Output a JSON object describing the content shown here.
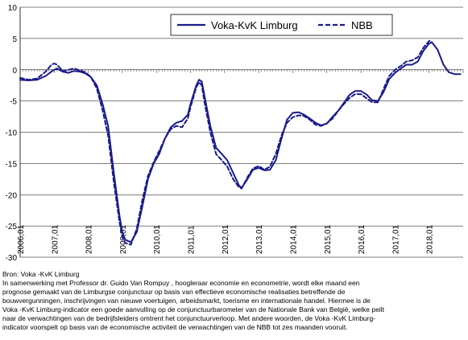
{
  "chart_data": {
    "type": "line",
    "ylim": [
      -30,
      10
    ],
    "yticks": [
      10,
      5,
      0,
      -5,
      -10,
      -15,
      -20,
      -25,
      -30
    ],
    "xticks": [
      "2006,01",
      "2007,01",
      "2008,01",
      "2009,01",
      "2010,01",
      "2011,01",
      "2012,01",
      "2013,01",
      "2014,01",
      "2015,01",
      "2016,01",
      "2017,01",
      "2018,01"
    ],
    "xstart": 2006.0,
    "xend": 2019.0,
    "grid": true,
    "legend_position": "top",
    "series": [
      {
        "name": "Voka-KvK Limburg",
        "style": "solid",
        "color": "#1a1a8a",
        "points": [
          [
            2006.0,
            -1.6
          ],
          [
            2006.25,
            -1.7
          ],
          [
            2006.5,
            -1.6
          ],
          [
            2006.75,
            -1.0
          ],
          [
            2006.92,
            -0.3
          ],
          [
            2007.0,
            0.0
          ],
          [
            2007.08,
            0.2
          ],
          [
            2007.25,
            -0.3
          ],
          [
            2007.42,
            -0.5
          ],
          [
            2007.58,
            -0.2
          ],
          [
            2007.75,
            -0.3
          ],
          [
            2007.92,
            -0.6
          ],
          [
            2008.08,
            -1.2
          ],
          [
            2008.25,
            -2.5
          ],
          [
            2008.42,
            -5.5
          ],
          [
            2008.58,
            -9.0
          ],
          [
            2008.75,
            -16.5
          ],
          [
            2008.92,
            -23.5
          ],
          [
            2009.0,
            -26.0
          ],
          [
            2009.08,
            -27.2
          ],
          [
            2009.25,
            -27.6
          ],
          [
            2009.42,
            -26.0
          ],
          [
            2009.58,
            -22.0
          ],
          [
            2009.75,
            -17.5
          ],
          [
            2009.92,
            -15.0
          ],
          [
            2010.08,
            -13.5
          ],
          [
            2010.25,
            -11.0
          ],
          [
            2010.42,
            -9.2
          ],
          [
            2010.58,
            -8.5
          ],
          [
            2010.75,
            -8.2
          ],
          [
            2010.92,
            -7.2
          ],
          [
            2011.0,
            -5.5
          ],
          [
            2011.17,
            -2.5
          ],
          [
            2011.25,
            -1.6
          ],
          [
            2011.33,
            -1.9
          ],
          [
            2011.42,
            -4.5
          ],
          [
            2011.58,
            -9.0
          ],
          [
            2011.75,
            -12.5
          ],
          [
            2011.92,
            -13.5
          ],
          [
            2012.08,
            -14.5
          ],
          [
            2012.25,
            -16.5
          ],
          [
            2012.42,
            -18.5
          ],
          [
            2012.5,
            -18.9
          ],
          [
            2012.67,
            -17.5
          ],
          [
            2012.83,
            -16.0
          ],
          [
            2013.0,
            -15.7
          ],
          [
            2013.17,
            -16.1
          ],
          [
            2013.33,
            -16.0
          ],
          [
            2013.5,
            -14.5
          ],
          [
            2013.67,
            -11.0
          ],
          [
            2013.83,
            -8.0
          ],
          [
            2014.0,
            -6.9
          ],
          [
            2014.17,
            -6.8
          ],
          [
            2014.33,
            -7.2
          ],
          [
            2014.5,
            -7.8
          ],
          [
            2014.67,
            -8.5
          ],
          [
            2014.83,
            -8.9
          ],
          [
            2015.0,
            -8.6
          ],
          [
            2015.17,
            -7.5
          ],
          [
            2015.33,
            -6.6
          ],
          [
            2015.5,
            -5.3
          ],
          [
            2015.67,
            -4.0
          ],
          [
            2015.83,
            -3.4
          ],
          [
            2016.0,
            -3.4
          ],
          [
            2016.17,
            -4.0
          ],
          [
            2016.33,
            -4.9
          ],
          [
            2016.5,
            -5.0
          ],
          [
            2016.67,
            -3.5
          ],
          [
            2016.83,
            -1.5
          ],
          [
            2017.0,
            -0.5
          ],
          [
            2017.17,
            0.2
          ],
          [
            2017.33,
            0.8
          ],
          [
            2017.5,
            0.8
          ],
          [
            2017.67,
            1.3
          ],
          [
            2017.83,
            3.0
          ],
          [
            2018.0,
            4.2
          ],
          [
            2018.08,
            4.4
          ],
          [
            2018.25,
            3.2
          ],
          [
            2018.42,
            0.8
          ],
          [
            2018.58,
            -0.4
          ],
          [
            2018.75,
            -0.7
          ],
          [
            2018.92,
            -0.7
          ]
        ]
      },
      {
        "name": "NBB",
        "style": "dashed",
        "color": "#1a1a8a",
        "points": [
          [
            2006.0,
            -1.3
          ],
          [
            2006.25,
            -1.6
          ],
          [
            2006.5,
            -1.4
          ],
          [
            2006.75,
            -0.3
          ],
          [
            2006.92,
            0.8
          ],
          [
            2007.0,
            1.0
          ],
          [
            2007.08,
            0.8
          ],
          [
            2007.25,
            -0.2
          ],
          [
            2007.42,
            0.0
          ],
          [
            2007.58,
            0.2
          ],
          [
            2007.75,
            -0.1
          ],
          [
            2007.92,
            -0.4
          ],
          [
            2008.08,
            -1.2
          ],
          [
            2008.25,
            -3.0
          ],
          [
            2008.42,
            -6.5
          ],
          [
            2008.58,
            -10.5
          ],
          [
            2008.75,
            -18.0
          ],
          [
            2008.92,
            -24.5
          ],
          [
            2009.0,
            -26.8
          ],
          [
            2009.08,
            -27.7
          ],
          [
            2009.25,
            -28.0
          ],
          [
            2009.42,
            -25.5
          ],
          [
            2009.58,
            -21.0
          ],
          [
            2009.75,
            -17.0
          ],
          [
            2009.92,
            -14.8
          ],
          [
            2010.08,
            -13.0
          ],
          [
            2010.25,
            -11.0
          ],
          [
            2010.42,
            -9.5
          ],
          [
            2010.58,
            -9.0
          ],
          [
            2010.75,
            -9.2
          ],
          [
            2010.92,
            -7.8
          ],
          [
            2011.0,
            -6.0
          ],
          [
            2011.17,
            -2.8
          ],
          [
            2011.25,
            -2.0
          ],
          [
            2011.33,
            -2.5
          ],
          [
            2011.42,
            -5.5
          ],
          [
            2011.58,
            -10.0
          ],
          [
            2011.75,
            -13.5
          ],
          [
            2011.92,
            -14.5
          ],
          [
            2012.08,
            -15.5
          ],
          [
            2012.25,
            -17.5
          ],
          [
            2012.42,
            -18.8
          ],
          [
            2012.5,
            -19.0
          ],
          [
            2012.67,
            -17.2
          ],
          [
            2012.83,
            -15.8
          ],
          [
            2013.0,
            -15.4
          ],
          [
            2013.17,
            -16.0
          ],
          [
            2013.33,
            -15.5
          ],
          [
            2013.5,
            -13.5
          ],
          [
            2013.67,
            -10.5
          ],
          [
            2013.83,
            -8.5
          ],
          [
            2014.0,
            -7.6
          ],
          [
            2014.17,
            -7.3
          ],
          [
            2014.33,
            -7.4
          ],
          [
            2014.5,
            -8.0
          ],
          [
            2014.67,
            -8.8
          ],
          [
            2014.83,
            -9.0
          ],
          [
            2015.0,
            -8.6
          ],
          [
            2015.17,
            -7.8
          ],
          [
            2015.33,
            -6.6
          ],
          [
            2015.5,
            -5.5
          ],
          [
            2015.67,
            -4.5
          ],
          [
            2015.83,
            -3.9
          ],
          [
            2016.0,
            -3.9
          ],
          [
            2016.17,
            -4.6
          ],
          [
            2016.33,
            -5.2
          ],
          [
            2016.5,
            -5.2
          ],
          [
            2016.67,
            -3.0
          ],
          [
            2016.83,
            -1.0
          ],
          [
            2017.0,
            0.0
          ],
          [
            2017.17,
            0.6
          ],
          [
            2017.33,
            1.3
          ],
          [
            2017.5,
            1.5
          ],
          [
            2017.67,
            2.0
          ],
          [
            2017.83,
            3.5
          ],
          [
            2018.0,
            4.6
          ],
          [
            2018.08,
            4.6
          ]
        ]
      }
    ]
  },
  "notes": {
    "line1": "Bron: Voka -KvK Limburg",
    "line2": "In samenwerking met Professor dr. Guido Van Rompuy , hoogleraar economie en  econometrie,  wordt elke maand een",
    "line3": "prognose gemaakt van de Limburgse conjunctuur op basis van  effectieve economische realisaties betreffende de",
    "line4": "bouwvergunningen, inschrijvingen van nieuwe voertuigen,  arbeidsmarkt, toerisme en internationale handel. Hiermee is de",
    "line5": "Voka -KvK Limburg-indicator een goede aanvulling op de conjunctuurbarometer van de Nationale Bank van België, welke peilt",
    "line6": "naar de verwachtingen van de bedrijfsleiders omtrent het conjunctuurverloop. Met andere woorden, de Voka -KvK Limburg-",
    "line7": "indicator voorspelt op basis van de economische activiteit de verwachtingen van de NBB tot zes maanden vooruit."
  }
}
